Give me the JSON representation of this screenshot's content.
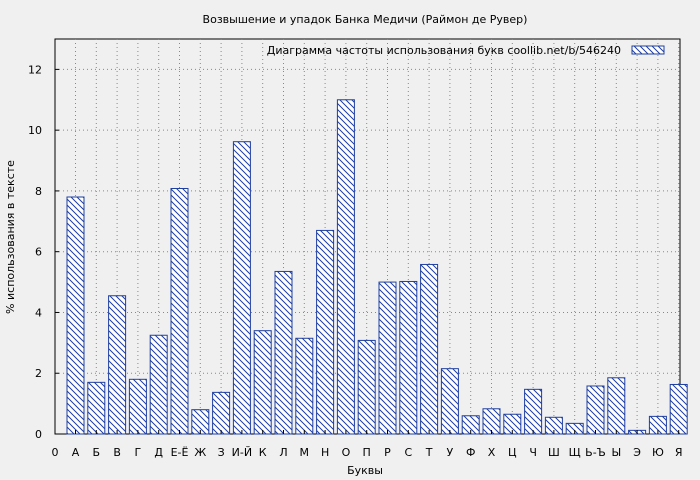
{
  "chart_data": {
    "type": "bar",
    "title": "Возвышение и упадок Банка Медичи (Раймон де Рувер)",
    "xlabel": "Буквы",
    "ylabel": "% использования в тексте",
    "legend_label": "Диаграмма частоты использования букв  coollib.net/b/546240",
    "legend_position": "top-right",
    "grid": true,
    "ylim": [
      0,
      13
    ],
    "yticks": [
      "0",
      "2",
      "4",
      "6",
      "8",
      "10",
      "12"
    ],
    "x_origin_label": "0",
    "categories": [
      "А",
      "Б",
      "В",
      "Г",
      "Д",
      "Е-Ё",
      "Ж",
      "З",
      "И-Й",
      "К",
      "Л",
      "М",
      "Н",
      "О",
      "П",
      "Р",
      "С",
      "Т",
      "У",
      "Ф",
      "Х",
      "Ц",
      "Ч",
      "Ш",
      "Щ",
      "Ь-Ъ",
      "Ы",
      "Э",
      "Ю",
      "Я"
    ],
    "values": [
      7.8,
      1.7,
      4.55,
      1.8,
      3.25,
      8.08,
      0.8,
      1.37,
      9.62,
      3.4,
      5.35,
      3.15,
      6.7,
      11.0,
      3.08,
      5.0,
      5.02,
      5.58,
      2.15,
      0.6,
      0.83,
      0.65,
      1.47,
      0.55,
      0.35,
      1.58,
      1.85,
      0.12,
      0.58,
      1.63
    ],
    "bar_color": "#1f3fa0",
    "background_color": "#f0f0f0"
  }
}
